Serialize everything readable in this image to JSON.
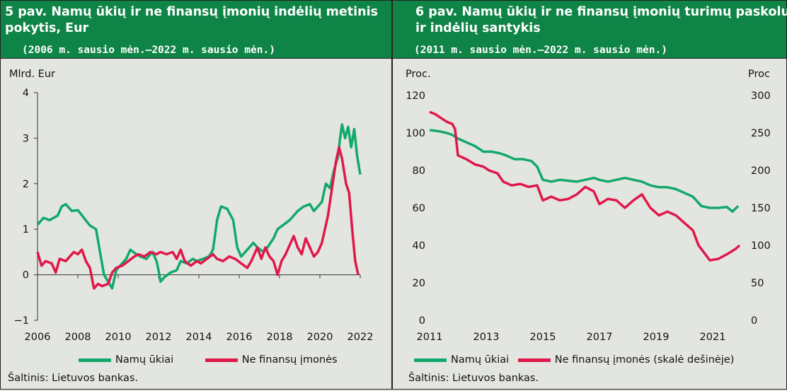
{
  "chart_data": [
    {
      "type": "line",
      "title": "5 pav. Namų ūkių ir ne finansų įmonių indėlių metinis pokytis, Eur",
      "subtitle": "(2006 m. sausio mėn.–2022 m. sausio mėn.)",
      "ylabel": "Mlrd. Eur",
      "xlim": [
        2006,
        2022
      ],
      "ylim": [
        -1,
        4
      ],
      "x_ticks": [
        "2006",
        "2008",
        "2010",
        "2012",
        "2014",
        "2016",
        "2018",
        "2020",
        "2022"
      ],
      "y_ticks": [
        "4",
        "3",
        "2",
        "1",
        "0",
        "−1"
      ],
      "series": [
        {
          "name": "Namų ūkiai",
          "color": "#13a86b",
          "points": [
            [
              2006.0,
              1.1
            ],
            [
              2006.3,
              1.25
            ],
            [
              2006.6,
              1.2
            ],
            [
              2007.0,
              1.3
            ],
            [
              2007.2,
              1.5
            ],
            [
              2007.4,
              1.55
            ],
            [
              2007.7,
              1.4
            ],
            [
              2008.0,
              1.42
            ],
            [
              2008.3,
              1.25
            ],
            [
              2008.6,
              1.08
            ],
            [
              2008.9,
              1.0
            ],
            [
              2009.1,
              0.5
            ],
            [
              2009.3,
              0.0
            ],
            [
              2009.5,
              -0.15
            ],
            [
              2009.7,
              -0.3
            ],
            [
              2009.9,
              0.1
            ],
            [
              2010.1,
              0.2
            ],
            [
              2010.4,
              0.35
            ],
            [
              2010.6,
              0.55
            ],
            [
              2010.9,
              0.45
            ],
            [
              2011.1,
              0.4
            ],
            [
              2011.4,
              0.35
            ],
            [
              2011.7,
              0.5
            ],
            [
              2011.9,
              0.3
            ],
            [
              2012.0,
              0.1
            ],
            [
              2012.1,
              -0.15
            ],
            [
              2012.3,
              -0.05
            ],
            [
              2012.6,
              0.05
            ],
            [
              2012.9,
              0.1
            ],
            [
              2013.1,
              0.3
            ],
            [
              2013.4,
              0.25
            ],
            [
              2013.7,
              0.35
            ],
            [
              2013.9,
              0.3
            ],
            [
              2014.2,
              0.35
            ],
            [
              2014.5,
              0.4
            ],
            [
              2014.7,
              0.55
            ],
            [
              2014.9,
              1.2
            ],
            [
              2015.1,
              1.5
            ],
            [
              2015.4,
              1.45
            ],
            [
              2015.7,
              1.2
            ],
            [
              2015.9,
              0.6
            ],
            [
              2016.1,
              0.4
            ],
            [
              2016.4,
              0.55
            ],
            [
              2016.7,
              0.7
            ],
            [
              2016.9,
              0.6
            ],
            [
              2017.2,
              0.5
            ],
            [
              2017.4,
              0.6
            ],
            [
              2017.7,
              0.8
            ],
            [
              2017.9,
              1.0
            ],
            [
              2018.2,
              1.1
            ],
            [
              2018.5,
              1.2
            ],
            [
              2018.7,
              1.3
            ],
            [
              2018.9,
              1.4
            ],
            [
              2019.2,
              1.5
            ],
            [
              2019.5,
              1.55
            ],
            [
              2019.7,
              1.4
            ],
            [
              2019.9,
              1.5
            ],
            [
              2020.1,
              1.6
            ],
            [
              2020.3,
              2.0
            ],
            [
              2020.5,
              1.9
            ],
            [
              2020.7,
              2.3
            ],
            [
              2020.9,
              2.6
            ],
            [
              2021.0,
              3.0
            ],
            [
              2021.1,
              3.3
            ],
            [
              2021.25,
              3.0
            ],
            [
              2021.4,
              3.25
            ],
            [
              2021.55,
              2.8
            ],
            [
              2021.7,
              3.2
            ],
            [
              2021.85,
              2.6
            ],
            [
              2022.0,
              2.2
            ]
          ]
        },
        {
          "name": "Ne finansų įmonės",
          "color": "#e0184a",
          "points": [
            [
              2006.0,
              0.5
            ],
            [
              2006.2,
              0.2
            ],
            [
              2006.4,
              0.3
            ],
            [
              2006.7,
              0.25
            ],
            [
              2006.9,
              0.05
            ],
            [
              2007.1,
              0.35
            ],
            [
              2007.4,
              0.3
            ],
            [
              2007.6,
              0.4
            ],
            [
              2007.8,
              0.5
            ],
            [
              2008.0,
              0.45
            ],
            [
              2008.2,
              0.55
            ],
            [
              2008.4,
              0.3
            ],
            [
              2008.6,
              0.15
            ],
            [
              2008.8,
              -0.3
            ],
            [
              2009.0,
              -0.2
            ],
            [
              2009.2,
              -0.25
            ],
            [
              2009.5,
              -0.2
            ],
            [
              2009.7,
              0.05
            ],
            [
              2009.9,
              0.15
            ],
            [
              2010.2,
              0.2
            ],
            [
              2010.5,
              0.3
            ],
            [
              2010.8,
              0.4
            ],
            [
              2011.0,
              0.45
            ],
            [
              2011.3,
              0.4
            ],
            [
              2011.6,
              0.5
            ],
            [
              2011.9,
              0.45
            ],
            [
              2012.1,
              0.5
            ],
            [
              2012.4,
              0.45
            ],
            [
              2012.7,
              0.5
            ],
            [
              2012.9,
              0.35
            ],
            [
              2013.1,
              0.55
            ],
            [
              2013.3,
              0.3
            ],
            [
              2013.6,
              0.2
            ],
            [
              2013.9,
              0.3
            ],
            [
              2014.1,
              0.25
            ],
            [
              2014.4,
              0.35
            ],
            [
              2014.7,
              0.45
            ],
            [
              2014.9,
              0.35
            ],
            [
              2015.2,
              0.3
            ],
            [
              2015.5,
              0.4
            ],
            [
              2015.8,
              0.35
            ],
            [
              2016.1,
              0.25
            ],
            [
              2016.4,
              0.15
            ],
            [
              2016.6,
              0.3
            ],
            [
              2016.9,
              0.6
            ],
            [
              2017.1,
              0.35
            ],
            [
              2017.3,
              0.6
            ],
            [
              2017.5,
              0.4
            ],
            [
              2017.7,
              0.3
            ],
            [
              2017.9,
              0.0
            ],
            [
              2018.1,
              0.3
            ],
            [
              2018.3,
              0.45
            ],
            [
              2018.5,
              0.65
            ],
            [
              2018.7,
              0.85
            ],
            [
              2018.9,
              0.6
            ],
            [
              2019.1,
              0.45
            ],
            [
              2019.3,
              0.8
            ],
            [
              2019.5,
              0.6
            ],
            [
              2019.7,
              0.4
            ],
            [
              2019.9,
              0.5
            ],
            [
              2020.1,
              0.7
            ],
            [
              2020.4,
              1.3
            ],
            [
              2020.6,
              1.9
            ],
            [
              2020.8,
              2.5
            ],
            [
              2020.95,
              2.8
            ],
            [
              2021.1,
              2.55
            ],
            [
              2021.3,
              2.0
            ],
            [
              2021.45,
              1.8
            ],
            [
              2021.6,
              1.0
            ],
            [
              2021.75,
              0.3
            ],
            [
              2021.9,
              0.0
            ]
          ]
        }
      ]
    },
    {
      "type": "line",
      "title": "6 pav. Namų ūkių ir ne finansų įmonių turimų paskolų ir indėlių santykis",
      "subtitle": "(2011 m. sausio mėn.–2022 m. sausio mėn.)",
      "ylabel_left": "Proc.",
      "ylabel_right": "Proc",
      "xlim": [
        2011,
        2022.2
      ],
      "ylim_left": [
        0,
        120
      ],
      "ylim_right": [
        0,
        300
      ],
      "x_ticks": [
        "2011",
        "2013",
        "2015",
        "2017",
        "2019",
        "2021"
      ],
      "y_ticks_left": [
        "120",
        "100",
        "80",
        "60",
        "40",
        "20",
        "0"
      ],
      "y_ticks_right": [
        "300",
        "250",
        "200",
        "150",
        "100",
        "50",
        "0"
      ],
      "series": [
        {
          "name": "Namų ūkiai",
          "axis": "left",
          "color": "#13a86b",
          "points": [
            [
              2011.0,
              101.5
            ],
            [
              2011.3,
              101
            ],
            [
              2011.6,
              100
            ],
            [
              2011.8,
              99
            ],
            [
              2012.0,
              97
            ],
            [
              2012.3,
              95
            ],
            [
              2012.6,
              93
            ],
            [
              2012.9,
              90
            ],
            [
              2013.2,
              90
            ],
            [
              2013.5,
              89
            ],
            [
              2013.7,
              88
            ],
            [
              2014.0,
              86
            ],
            [
              2014.3,
              86
            ],
            [
              2014.6,
              85
            ],
            [
              2014.8,
              82
            ],
            [
              2015.0,
              75
            ],
            [
              2015.3,
              74
            ],
            [
              2015.6,
              75
            ],
            [
              2015.9,
              74.5
            ],
            [
              2016.2,
              74
            ],
            [
              2016.5,
              75
            ],
            [
              2016.8,
              76
            ],
            [
              2017.0,
              75
            ],
            [
              2017.3,
              74
            ],
            [
              2017.6,
              75
            ],
            [
              2017.9,
              76
            ],
            [
              2018.2,
              75
            ],
            [
              2018.5,
              74
            ],
            [
              2018.8,
              72
            ],
            [
              2019.1,
              71
            ],
            [
              2019.4,
              71
            ],
            [
              2019.7,
              70
            ],
            [
              2020.0,
              68
            ],
            [
              2020.3,
              66
            ],
            [
              2020.6,
              61
            ],
            [
              2020.9,
              60
            ],
            [
              2021.2,
              60
            ],
            [
              2021.5,
              60.5
            ],
            [
              2021.7,
              58
            ],
            [
              2021.9,
              61
            ]
          ]
        },
        {
          "name": "Ne finansų įmonės (skalė dešinėje)",
          "axis": "right",
          "color": "#e0184a",
          "points": [
            [
              2011.0,
              278
            ],
            [
              2011.2,
              275
            ],
            [
              2011.4,
              270
            ],
            [
              2011.6,
              265
            ],
            [
              2011.8,
              262
            ],
            [
              2011.9,
              255
            ],
            [
              2012.0,
              220
            ],
            [
              2012.3,
              215
            ],
            [
              2012.6,
              208
            ],
            [
              2012.9,
              205
            ],
            [
              2013.1,
              200
            ],
            [
              2013.4,
              196
            ],
            [
              2013.6,
              185
            ],
            [
              2013.9,
              180
            ],
            [
              2014.2,
              182
            ],
            [
              2014.5,
              178
            ],
            [
              2014.8,
              180
            ],
            [
              2015.0,
              160
            ],
            [
              2015.3,
              165
            ],
            [
              2015.6,
              160
            ],
            [
              2015.9,
              162
            ],
            [
              2016.2,
              168
            ],
            [
              2016.5,
              178
            ],
            [
              2016.8,
              172
            ],
            [
              2017.0,
              155
            ],
            [
              2017.3,
              162
            ],
            [
              2017.6,
              160
            ],
            [
              2017.9,
              150
            ],
            [
              2018.2,
              160
            ],
            [
              2018.5,
              168
            ],
            [
              2018.8,
              150
            ],
            [
              2019.1,
              140
            ],
            [
              2019.4,
              145
            ],
            [
              2019.7,
              140
            ],
            [
              2020.0,
              130
            ],
            [
              2020.3,
              120
            ],
            [
              2020.5,
              100
            ],
            [
              2020.7,
              90
            ],
            [
              2020.9,
              80
            ],
            [
              2021.2,
              82
            ],
            [
              2021.5,
              88
            ],
            [
              2021.8,
              95
            ],
            [
              2021.95,
              100
            ]
          ]
        }
      ]
    }
  ],
  "sources": [
    "Šaltinis: Lietuvos bankas.",
    "Šaltinis: Lietuvos bankas."
  ]
}
